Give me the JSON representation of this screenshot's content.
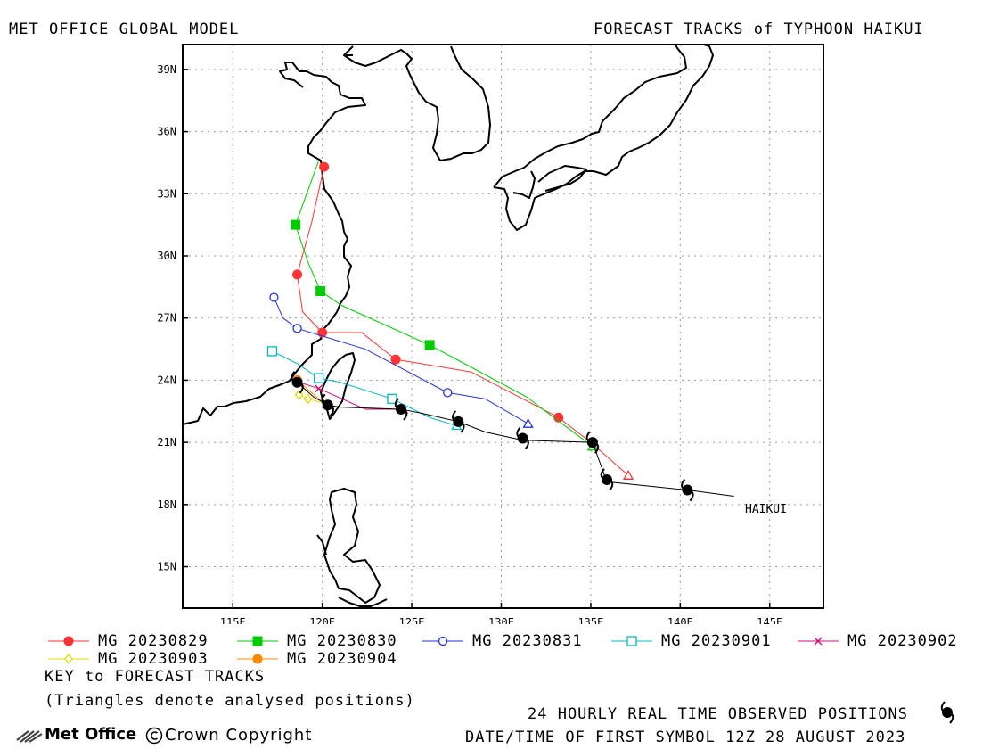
{
  "header": {
    "left_title": "MET OFFICE GLOBAL MODEL",
    "right_title": "FORECAST TRACKS of TYPHOON HAIKUI"
  },
  "axes": {
    "lat_labels": [
      "39N",
      "36N",
      "33N",
      "30N",
      "27N",
      "24N",
      "21N",
      "18N",
      "15N"
    ],
    "lon_labels": [
      "115E",
      "120E",
      "125E",
      "130E",
      "135E",
      "140E",
      "145E"
    ]
  },
  "storm_label": "HAIKUI",
  "chart_data": {
    "type": "map",
    "lon_range": [
      112.2,
      148.0
    ],
    "lat_range": [
      13.0,
      40.2
    ],
    "grid": true,
    "tracks": [
      {
        "name": "MG 20230829",
        "color": "#ff3333",
        "marker": "filled-circle",
        "points": [
          [
            137.1,
            19.4
          ],
          [
            135.0,
            21.0
          ],
          [
            133.2,
            22.2
          ],
          [
            128.3,
            24.4
          ],
          [
            124.1,
            25.0
          ],
          [
            122.2,
            26.3
          ],
          [
            120.0,
            26.3
          ],
          [
            118.9,
            27.3
          ],
          [
            118.6,
            29.1
          ],
          [
            119.4,
            31.6
          ],
          [
            120.1,
            34.3
          ]
        ]
      },
      {
        "name": "MG 20230830",
        "color": "#00cc00",
        "marker": "filled-square",
        "points": [
          [
            135.1,
            20.8
          ],
          [
            131.4,
            23.2
          ],
          [
            126.0,
            25.7
          ],
          [
            121.1,
            27.6
          ],
          [
            119.9,
            28.3
          ],
          [
            119.2,
            29.7
          ],
          [
            118.5,
            31.5
          ],
          [
            119.8,
            34.6
          ]
        ]
      },
      {
        "name": "MG 20230831",
        "color": "#2233dd",
        "marker": "open-circle",
        "points": [
          [
            131.5,
            21.9
          ],
          [
            129.1,
            23.1
          ],
          [
            127.0,
            23.4
          ],
          [
            122.4,
            25.5
          ],
          [
            118.6,
            26.5
          ],
          [
            117.8,
            27.0
          ],
          [
            117.3,
            28.0
          ]
        ]
      },
      {
        "name": "MG 20230901",
        "color": "#00bbbb",
        "marker": "open-square",
        "points": [
          [
            127.5,
            21.8
          ],
          [
            126.0,
            22.2
          ],
          [
            123.9,
            23.1
          ],
          [
            121.0,
            23.9
          ],
          [
            119.8,
            24.1
          ],
          [
            118.6,
            24.8
          ],
          [
            117.2,
            25.4
          ]
        ]
      },
      {
        "name": "MG 20230902",
        "color": "#cc1177",
        "marker": "cross",
        "points": [
          [
            124.5,
            22.6
          ],
          [
            122.4,
            22.6
          ],
          [
            119.8,
            23.6
          ],
          [
            118.7,
            23.9
          ]
        ]
      },
      {
        "name": "MG 20230903",
        "color": "#dddd00",
        "marker": "open-diamond",
        "points": [
          [
            120.4,
            22.8
          ],
          [
            119.2,
            23.1
          ],
          [
            118.7,
            23.3
          ]
        ]
      },
      {
        "name": "MG 20230904",
        "color": "#ff8800",
        "marker": "filled-circle",
        "points": [
          [
            120.2,
            22.8
          ],
          [
            118.6,
            24.0
          ]
        ]
      }
    ],
    "observed": {
      "name": "24 HOURLY REAL TIME OBSERVED POSITIONS",
      "color": "#000000",
      "first_symbol_time": "12Z 28 AUGUST 2023",
      "line": [
        [
          143.0,
          18.4
        ],
        [
          140.4,
          18.7
        ],
        [
          135.9,
          19.1
        ],
        [
          135.1,
          21.0
        ],
        [
          131.2,
          21.1
        ],
        [
          129.1,
          21.5
        ],
        [
          127.6,
          22.0
        ],
        [
          125.6,
          22.4
        ],
        [
          124.4,
          22.6
        ],
        [
          121.0,
          22.7
        ],
        [
          120.3,
          22.8
        ],
        [
          119.5,
          23.2
        ],
        [
          118.6,
          23.9
        ]
      ],
      "symbols": [
        [
          140.4,
          18.7
        ],
        [
          135.9,
          19.2
        ],
        [
          135.1,
          21.0
        ],
        [
          131.2,
          21.2
        ],
        [
          127.6,
          22.0
        ],
        [
          124.4,
          22.6
        ],
        [
          120.3,
          22.8
        ],
        [
          118.6,
          23.9
        ]
      ]
    },
    "analysed_triangles": [
      {
        "color": "#ff3333",
        "pos": [
          137.1,
          19.4
        ]
      },
      {
        "color": "#00cc00",
        "pos": [
          135.1,
          20.8
        ]
      },
      {
        "color": "#2233dd",
        "pos": [
          131.5,
          21.9
        ]
      },
      {
        "color": "#00bbbb",
        "pos": [
          127.5,
          21.8
        ]
      },
      {
        "color": "#cc1177",
        "pos": [
          124.5,
          22.6
        ]
      },
      {
        "color": "#dddd00",
        "pos": [
          120.4,
          22.8
        ]
      }
    ]
  },
  "legend": {
    "entries": [
      {
        "label": "MG 20230829",
        "color": "#ff3333",
        "marker": "filled-circle"
      },
      {
        "label": "MG 20230830",
        "color": "#00cc00",
        "marker": "filled-square"
      },
      {
        "label": "MG 20230831",
        "color": "#2233dd",
        "marker": "open-circle"
      },
      {
        "label": "MG 20230901",
        "color": "#00bbbb",
        "marker": "open-square"
      },
      {
        "label": "MG 20230902",
        "color": "#cc1177",
        "marker": "cross"
      },
      {
        "label": "MG 20230903",
        "color": "#dddd00",
        "marker": "open-diamond"
      },
      {
        "label": "MG 20230904",
        "color": "#ff8800",
        "marker": "filled-circle"
      }
    ],
    "key_title": "KEY to FORECAST TRACKS",
    "key_note": "(Triangles denote analysed positions)"
  },
  "footer": {
    "observed_text": "24 HOURLY REAL TIME OBSERVED POSITIONS",
    "date_text": "DATE/TIME OF FIRST SYMBOL 12Z 28 AUGUST 2023",
    "brand": "Met Office",
    "copyright": "Crown Copyright"
  }
}
